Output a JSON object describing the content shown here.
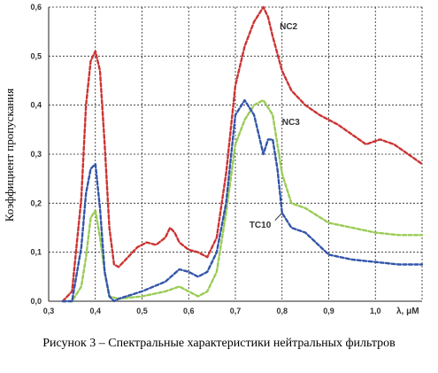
{
  "caption": "Рисунок 3 – Спектральные характеристики нейтральных фильтров",
  "chart_data": {
    "type": "line",
    "title": "",
    "ylabel": "Коэффициент пропускания",
    "xlabel": "λ, μM",
    "xlim": [
      0.3,
      1.1
    ],
    "ylim": [
      0,
      0.6
    ],
    "x_ticks": [
      {
        "value": 0.3,
        "label": "0,3"
      },
      {
        "value": 0.4,
        "label": "0,4"
      },
      {
        "value": 0.5,
        "label": "0,5"
      },
      {
        "value": 0.6,
        "label": "0,6"
      },
      {
        "value": 0.7,
        "label": "0,7"
      },
      {
        "value": 0.8,
        "label": "0,8"
      },
      {
        "value": 0.9,
        "label": "0,9"
      },
      {
        "value": 1.0,
        "label": "1,0"
      }
    ],
    "y_ticks": [
      {
        "value": 0.0,
        "label": "0,0"
      },
      {
        "value": 0.1,
        "label": "0,1"
      },
      {
        "value": 0.2,
        "label": "0,2"
      },
      {
        "value": 0.3,
        "label": "0,3"
      },
      {
        "value": 0.4,
        "label": "0,4"
      },
      {
        "value": 0.5,
        "label": "0,5"
      },
      {
        "value": 0.6,
        "label": "0,6"
      }
    ],
    "grid": true,
    "series": [
      {
        "name": "NC2",
        "color": "#cc3333",
        "x": [
          0.33,
          0.35,
          0.37,
          0.38,
          0.39,
          0.4,
          0.41,
          0.42,
          0.43,
          0.44,
          0.45,
          0.47,
          0.49,
          0.51,
          0.53,
          0.55,
          0.56,
          0.57,
          0.58,
          0.6,
          0.62,
          0.64,
          0.66,
          0.68,
          0.7,
          0.72,
          0.74,
          0.76,
          0.77,
          0.78,
          0.8,
          0.82,
          0.85,
          0.88,
          0.92,
          0.95,
          0.98,
          1.01,
          1.04,
          1.07,
          1.1
        ],
        "y": [
          0.0,
          0.02,
          0.21,
          0.4,
          0.49,
          0.51,
          0.47,
          0.32,
          0.15,
          0.075,
          0.07,
          0.09,
          0.11,
          0.12,
          0.115,
          0.13,
          0.15,
          0.14,
          0.12,
          0.105,
          0.1,
          0.09,
          0.13,
          0.26,
          0.44,
          0.52,
          0.57,
          0.6,
          0.58,
          0.54,
          0.47,
          0.43,
          0.4,
          0.38,
          0.36,
          0.34,
          0.32,
          0.33,
          0.32,
          0.3,
          0.28
        ]
      },
      {
        "name": "NC3",
        "color": "#99cc55",
        "x": [
          0.33,
          0.35,
          0.37,
          0.38,
          0.39,
          0.4,
          0.41,
          0.42,
          0.43,
          0.45,
          0.5,
          0.55,
          0.58,
          0.6,
          0.62,
          0.64,
          0.66,
          0.68,
          0.7,
          0.72,
          0.74,
          0.76,
          0.78,
          0.8,
          0.82,
          0.85,
          0.9,
          0.95,
          1.0,
          1.05,
          1.1
        ],
        "y": [
          0.0,
          0.0,
          0.03,
          0.09,
          0.17,
          0.185,
          0.13,
          0.06,
          0.01,
          0.005,
          0.01,
          0.02,
          0.03,
          0.02,
          0.01,
          0.02,
          0.06,
          0.18,
          0.32,
          0.37,
          0.4,
          0.41,
          0.38,
          0.26,
          0.2,
          0.19,
          0.16,
          0.15,
          0.14,
          0.135,
          0.135
        ]
      },
      {
        "name": "TC10",
        "color": "#3355aa",
        "x": [
          0.33,
          0.35,
          0.37,
          0.38,
          0.39,
          0.4,
          0.41,
          0.42,
          0.43,
          0.44,
          0.45,
          0.5,
          0.55,
          0.58,
          0.6,
          0.62,
          0.64,
          0.66,
          0.68,
          0.7,
          0.72,
          0.74,
          0.75,
          0.76,
          0.77,
          0.78,
          0.79,
          0.8,
          0.82,
          0.85,
          0.9,
          0.95,
          1.0,
          1.05,
          1.1
        ],
        "y": [
          0.0,
          0.0,
          0.11,
          0.22,
          0.27,
          0.28,
          0.19,
          0.06,
          0.01,
          0.0,
          0.005,
          0.02,
          0.04,
          0.065,
          0.06,
          0.05,
          0.06,
          0.1,
          0.2,
          0.38,
          0.41,
          0.38,
          0.34,
          0.3,
          0.33,
          0.33,
          0.27,
          0.18,
          0.15,
          0.14,
          0.095,
          0.085,
          0.08,
          0.075,
          0.075
        ]
      }
    ]
  }
}
